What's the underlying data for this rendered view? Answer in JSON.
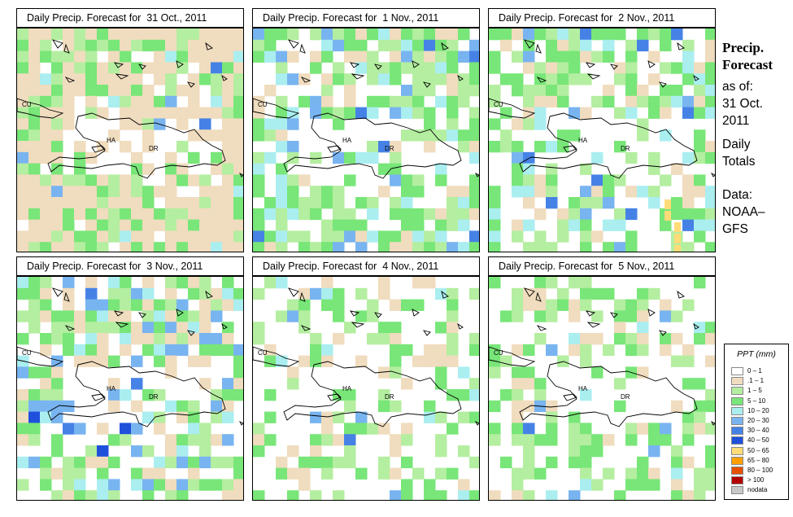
{
  "panels": [
    {
      "title": "Daily Precip. Forecast for  31 Oct., 2011",
      "seed": 11,
      "bias": [
        0.1,
        0.55,
        0.3,
        0.05
      ]
    },
    {
      "title": "Daily Precip. Forecast for  1 Nov., 2011",
      "seed": 23,
      "bias": [
        0.3,
        0.08,
        0.45,
        0.17
      ]
    },
    {
      "title": "Daily Precip. Forecast for  2 Nov., 2011",
      "seed": 37,
      "bias": [
        0.35,
        0.1,
        0.38,
        0.17
      ]
    },
    {
      "title": "Daily Precip. Forecast for  3 Nov., 2011",
      "seed": 41,
      "bias": [
        0.3,
        0.2,
        0.32,
        0.18
      ]
    },
    {
      "title": "Daily Precip. Forecast for  4 Nov., 2011",
      "seed": 53,
      "bias": [
        0.55,
        0.15,
        0.27,
        0.03
      ]
    },
    {
      "title": "Daily Precip. Forecast for  5 Nov., 2011",
      "seed": 67,
      "bias": [
        0.55,
        0.1,
        0.3,
        0.05
      ]
    }
  ],
  "map_labels": {
    "cuba": "CU",
    "haiti": "HA",
    "dominican_republic": "DR"
  },
  "sidebar": {
    "title_line1": "Precip.",
    "title_line2": "Forecast",
    "asof_label": "as of:",
    "date_line1": "31 Oct.",
    "date_line2": "2011",
    "totals_line1": "Daily",
    "totals_line2": "Totals",
    "data_line1": "Data:",
    "data_line2": "NOAA–",
    "data_line3": "GFS"
  },
  "legend": {
    "title": "PPT (mm)",
    "entries": [
      {
        "label": "0 – 1",
        "color": "#ffffff"
      },
      {
        "label": ".1 – 1",
        "color": "#f0dcbe"
      },
      {
        "label": "1 – 5",
        "color": "#b4eea0"
      },
      {
        "label": "5 – 10",
        "color": "#78e678"
      },
      {
        "label": "10 – 20",
        "color": "#aaeef0"
      },
      {
        "label": "20 – 30",
        "color": "#78b4f0"
      },
      {
        "label": "30 – 40",
        "color": "#4682e6"
      },
      {
        "label": "40 – 50",
        "color": "#1e50dc"
      },
      {
        "label": "50 – 65",
        "color": "#ffdc78"
      },
      {
        "label": "65 – 80",
        "color": "#ffa000"
      },
      {
        "label": "80 – 100",
        "color": "#e65000"
      },
      {
        "label": "> 100",
        "color": "#b40000"
      },
      {
        "label": "nodata",
        "color": "#c8c8c8"
      }
    ]
  }
}
